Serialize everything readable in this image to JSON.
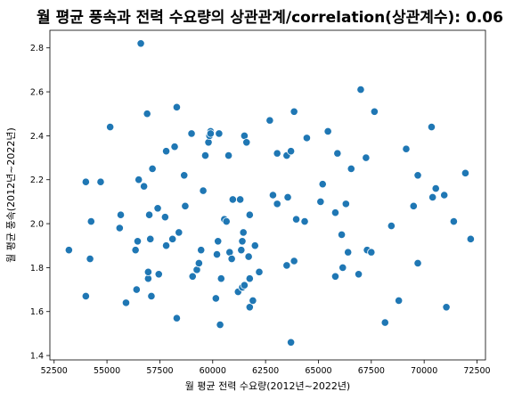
{
  "chart_data": {
    "type": "scatter",
    "title": "월 평균 풍속과 전력 수요량의 상관관계/correlation(상관계수): 0.06",
    "xlabel": "월 평균 전력 수요량(2012년~2022년)",
    "ylabel": "월 평균 풍속(2012년~2022년)",
    "xlim": [
      52300,
      72900
    ],
    "ylim": [
      1.38,
      2.88
    ],
    "xticks": [
      52500,
      55000,
      57500,
      60000,
      62500,
      65000,
      67500,
      70000,
      72500
    ],
    "yticks": [
      1.4,
      1.6,
      1.8,
      2.0,
      2.2,
      2.4,
      2.6,
      2.8
    ],
    "grid": false,
    "marker_color": "#1f77b4",
    "points": [
      [
        53200,
        1.88
      ],
      [
        54000,
        1.67
      ],
      [
        54000,
        2.19
      ],
      [
        54200,
        1.84
      ],
      [
        54250,
        2.01
      ],
      [
        54700,
        2.19
      ],
      [
        55150,
        2.44
      ],
      [
        55600,
        1.98
      ],
      [
        55650,
        2.04
      ],
      [
        55900,
        1.64
      ],
      [
        56350,
        1.88
      ],
      [
        56400,
        1.7
      ],
      [
        56450,
        1.92
      ],
      [
        56500,
        2.2
      ],
      [
        56600,
        2.82
      ],
      [
        56750,
        2.17
      ],
      [
        56900,
        2.5
      ],
      [
        56950,
        1.75
      ],
      [
        56950,
        1.78
      ],
      [
        57000,
        2.04
      ],
      [
        57050,
        1.93
      ],
      [
        57100,
        1.67
      ],
      [
        57150,
        2.25
      ],
      [
        57400,
        2.07
      ],
      [
        57450,
        1.77
      ],
      [
        57750,
        2.03
      ],
      [
        57800,
        1.9
      ],
      [
        57800,
        2.33
      ],
      [
        58100,
        1.93
      ],
      [
        58200,
        2.35
      ],
      [
        58300,
        2.53
      ],
      [
        58300,
        1.57
      ],
      [
        58400,
        1.96
      ],
      [
        58650,
        2.22
      ],
      [
        58700,
        2.08
      ],
      [
        59000,
        2.41
      ],
      [
        59050,
        1.76
      ],
      [
        59250,
        1.79
      ],
      [
        59350,
        1.82
      ],
      [
        59450,
        1.88
      ],
      [
        59550,
        2.15
      ],
      [
        59650,
        2.31
      ],
      [
        59800,
        2.37
      ],
      [
        59850,
        2.4
      ],
      [
        59900,
        2.42
      ],
      [
        59900,
        2.41
      ],
      [
        60150,
        1.66
      ],
      [
        60200,
        1.86
      ],
      [
        60250,
        1.92
      ],
      [
        60300,
        2.41
      ],
      [
        60350,
        1.54
      ],
      [
        60400,
        1.75
      ],
      [
        60550,
        2.02
      ],
      [
        60650,
        2.01
      ],
      [
        60750,
        2.31
      ],
      [
        60800,
        1.87
      ],
      [
        60900,
        1.84
      ],
      [
        60950,
        2.11
      ],
      [
        61200,
        1.69
      ],
      [
        61300,
        2.11
      ],
      [
        61350,
        1.88
      ],
      [
        61400,
        1.71
      ],
      [
        61400,
        1.92
      ],
      [
        61450,
        1.96
      ],
      [
        61500,
        1.72
      ],
      [
        61500,
        2.4
      ],
      [
        61600,
        2.37
      ],
      [
        61700,
        1.85
      ],
      [
        61750,
        1.62
      ],
      [
        61750,
        1.75
      ],
      [
        61750,
        2.04
      ],
      [
        61900,
        1.65
      ],
      [
        62000,
        1.9
      ],
      [
        62200,
        1.78
      ],
      [
        62700,
        2.47
      ],
      [
        62850,
        2.13
      ],
      [
        63050,
        2.09
      ],
      [
        63050,
        2.32
      ],
      [
        63500,
        1.81
      ],
      [
        63500,
        2.31
      ],
      [
        63550,
        2.12
      ],
      [
        63700,
        1.46
      ],
      [
        63700,
        2.33
      ],
      [
        63850,
        2.51
      ],
      [
        63850,
        1.83
      ],
      [
        63950,
        2.02
      ],
      [
        64350,
        2.01
      ],
      [
        64450,
        2.39
      ],
      [
        65100,
        2.1
      ],
      [
        65200,
        2.18
      ],
      [
        65450,
        2.42
      ],
      [
        65800,
        2.05
      ],
      [
        65800,
        1.76
      ],
      [
        65900,
        2.32
      ],
      [
        66100,
        1.95
      ],
      [
        66150,
        1.8
      ],
      [
        66300,
        2.09
      ],
      [
        66400,
        1.87
      ],
      [
        66550,
        2.25
      ],
      [
        66900,
        1.77
      ],
      [
        67000,
        2.61
      ],
      [
        67250,
        2.3
      ],
      [
        67300,
        1.88
      ],
      [
        67500,
        1.87
      ],
      [
        67650,
        2.51
      ],
      [
        68150,
        1.55
      ],
      [
        68450,
        1.99
      ],
      [
        68800,
        1.65
      ],
      [
        69150,
        2.34
      ],
      [
        69500,
        2.08
      ],
      [
        69700,
        2.22
      ],
      [
        69700,
        1.82
      ],
      [
        70350,
        2.44
      ],
      [
        70400,
        2.12
      ],
      [
        70550,
        2.16
      ],
      [
        70950,
        2.13
      ],
      [
        71050,
        1.62
      ],
      [
        71400,
        2.01
      ],
      [
        71950,
        2.23
      ],
      [
        72200,
        1.93
      ]
    ]
  }
}
